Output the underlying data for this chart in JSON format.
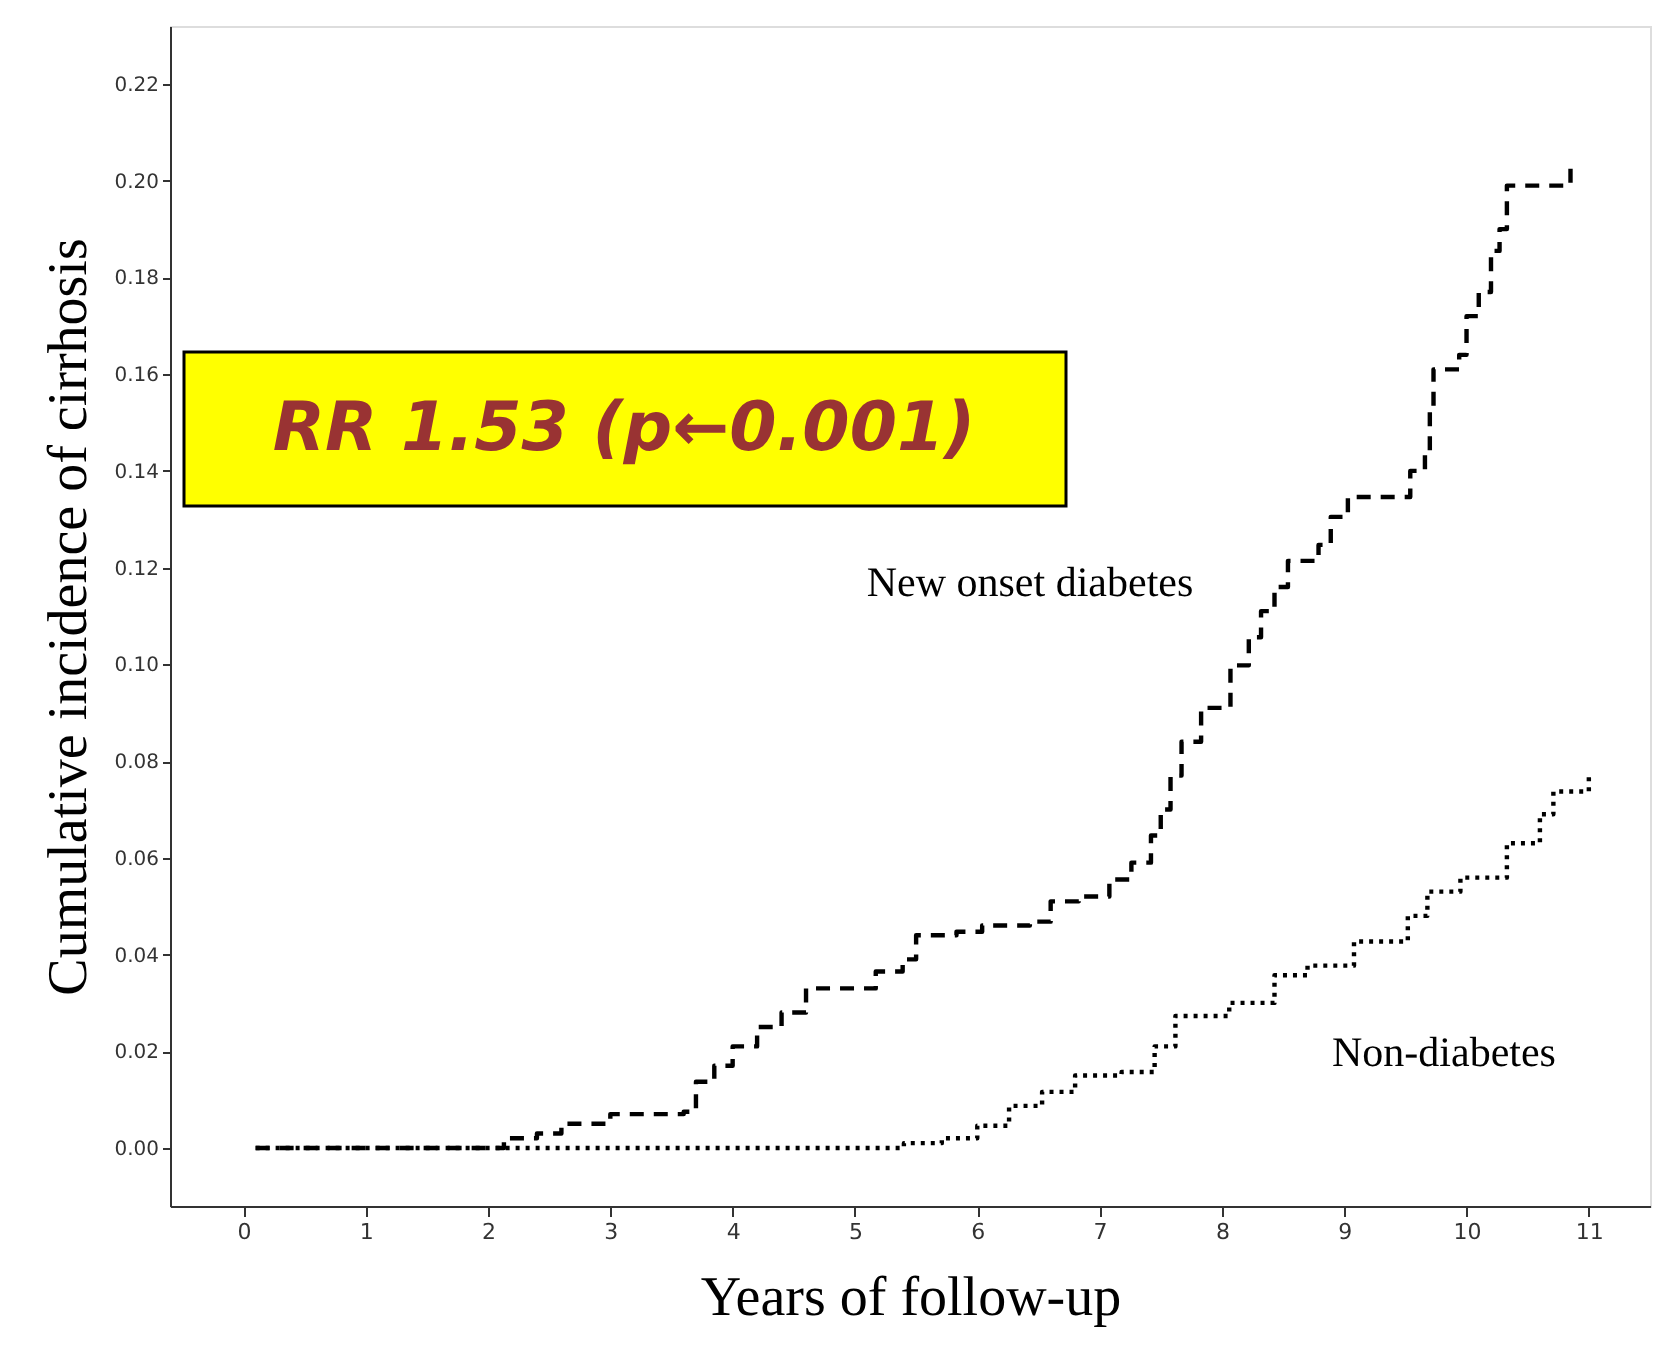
{
  "chart_data": {
    "type": "step",
    "xlabel": "Years of follow-up",
    "ylabel": "Cumulative incidence of cirrhosis",
    "annotations": [
      "RR 1.53 (p←0.001)"
    ],
    "xlim": [
      -0.6,
      11.5
    ],
    "ylim": [
      -0.012,
      0.232
    ],
    "xticks": [
      0,
      1,
      2,
      3,
      4,
      5,
      6,
      7,
      8,
      9,
      10,
      11
    ],
    "yticks": [
      {
        "value": 0,
        "label": "0.00"
      },
      {
        "value": 0.02,
        "label": "0.02"
      },
      {
        "value": 0.04,
        "label": "0.04"
      },
      {
        "value": 0.06,
        "label": "0.06"
      },
      {
        "value": 0.08,
        "label": "0.08"
      },
      {
        "value": 0.1,
        "label": "0.10"
      },
      {
        "value": 0.12,
        "label": "0.12"
      },
      {
        "value": 0.14,
        "label": "0.14"
      },
      {
        "value": 0.16,
        "label": "0.16"
      },
      {
        "value": 0.18,
        "label": "0.18"
      },
      {
        "value": 0.2,
        "label": "0.20"
      },
      {
        "value": 0.22,
        "label": "0.22"
      }
    ],
    "grid": false,
    "marker": "none",
    "series": [
      {
        "name": "New onset diabetes",
        "color": "#000000",
        "line_style": "dashed",
        "x": [
          0.1,
          2.13,
          2.4,
          2.6,
          3.0,
          3.6,
          3.7,
          3.85,
          4.0,
          4.2,
          4.4,
          4.6,
          5.17,
          5.39,
          5.5,
          5.83,
          6.04,
          6.43,
          6.6,
          6.83,
          7.08,
          7.26,
          7.42,
          7.5,
          7.58,
          7.67,
          7.83,
          8.07,
          8.22,
          8.32,
          8.43,
          8.54,
          8.79,
          8.89,
          9.03,
          9.54,
          9.66,
          9.7,
          9.73,
          9.94,
          10.0,
          10.1,
          10.2,
          10.27,
          10.33,
          10.85
        ],
        "values": [
          0,
          0.002,
          0.003,
          0.005,
          0.007,
          0.0075,
          0.0137,
          0.017,
          0.021,
          0.025,
          0.028,
          0.033,
          0.0365,
          0.039,
          0.044,
          0.0447,
          0.046,
          0.0468,
          0.051,
          0.052,
          0.0555,
          0.059,
          0.0646,
          0.07,
          0.077,
          0.084,
          0.091,
          0.0998,
          0.1056,
          0.111,
          0.116,
          0.1214,
          0.1247,
          0.1305,
          0.1346,
          0.14,
          0.144,
          0.153,
          0.161,
          0.164,
          0.172,
          0.177,
          0.1855,
          0.19,
          0.199,
          0.204
        ]
      },
      {
        "name": "Non-diabetes",
        "color": "#000000",
        "line_style": "dotted",
        "x": [
          0.1,
          5.2,
          5.4,
          5.71,
          6.0,
          6.26,
          6.53,
          6.8,
          7.18,
          7.45,
          7.62,
          8.06,
          8.43,
          8.7,
          9.08,
          9.52,
          9.68,
          9.95,
          10.33,
          10.6,
          10.71,
          11.0
        ],
        "values": [
          0,
          0,
          0.001,
          0.002,
          0.0046,
          0.0087,
          0.0116,
          0.015,
          0.0157,
          0.021,
          0.0273,
          0.03,
          0.0357,
          0.0377,
          0.0427,
          0.048,
          0.053,
          0.0559,
          0.063,
          0.069,
          0.0737,
          0.077
        ]
      }
    ]
  }
}
